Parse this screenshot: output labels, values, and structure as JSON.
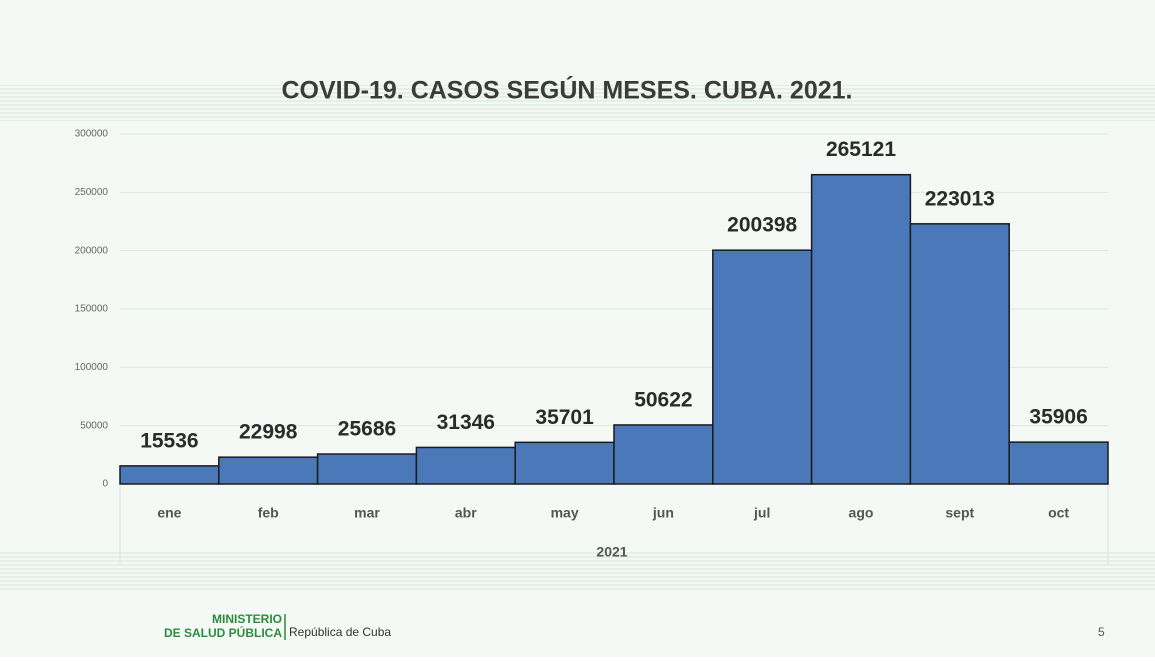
{
  "chart_data": {
    "type": "bar",
    "title": "COVID-19. CASOS SEGÚN MESES. CUBA. 2021.",
    "categories": [
      "ene",
      "feb",
      "mar",
      "abr",
      "may",
      "jun",
      "jul",
      "ago",
      "sept",
      "oct"
    ],
    "category_group": "2021",
    "values": [
      15536,
      22998,
      25686,
      31346,
      35701,
      50622,
      200398,
      265121,
      223013,
      35906
    ],
    "color": "#4a78b8",
    "ylim": [
      0,
      300000
    ],
    "yticks": [
      0,
      50000,
      100000,
      150000,
      200000,
      250000,
      300000
    ],
    "grid": true
  },
  "footer": {
    "ministry_line1": "MINISTERIO",
    "ministry_line2": "DE SALUD PÚBLICA",
    "country": "República de Cuba",
    "page_number": "5"
  }
}
